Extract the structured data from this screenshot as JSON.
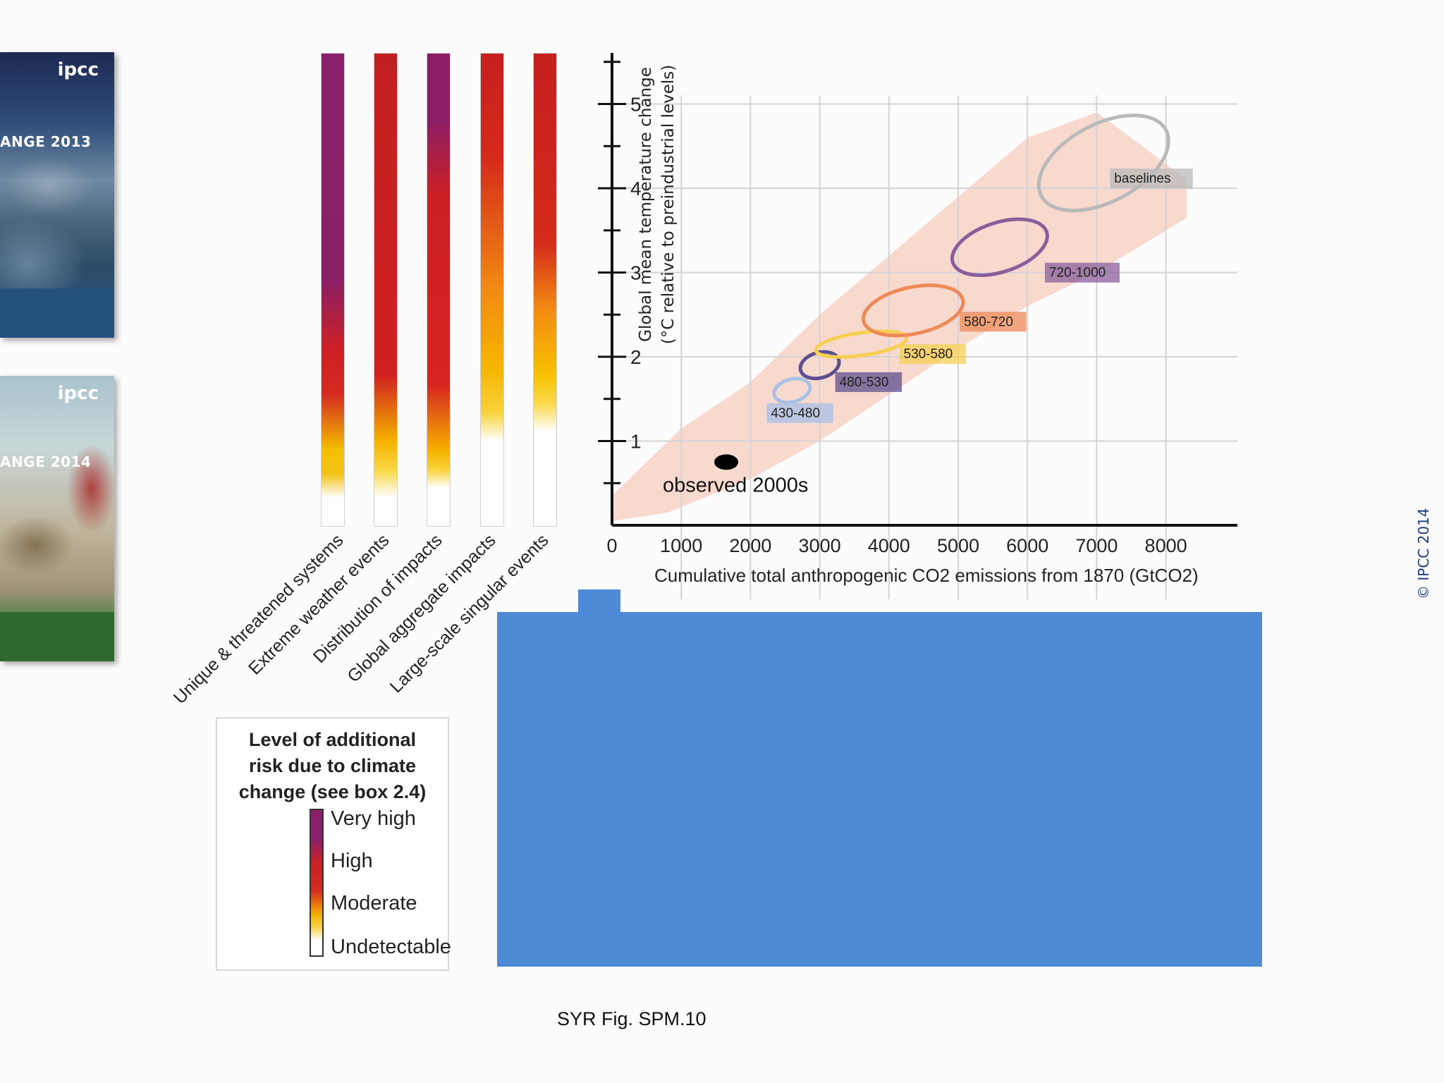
{
  "covers": [
    {
      "logo": "ipcc",
      "title": "ANGE 2013"
    },
    {
      "logo": "ipcc",
      "title": "ANGE 2014"
    }
  ],
  "risk_categories": [
    "Unique & threatened systems",
    "Extreme weather events",
    "Distribution of impacts",
    "Global aggregate impacts",
    "Large-scale singular events"
  ],
  "legend": {
    "title": "Level of additional risk due to climate change (see box 2.4)",
    "levels": [
      "Very high",
      "High",
      "Moderate",
      "Undetectable"
    ]
  },
  "chart_data": {
    "type": "scatter",
    "xlabel": "Cumulative total anthropogenic CO2 emissions from 1870 (GtCO2)",
    "ylabel_line1": "Global mean temperature change",
    "ylabel_line2": "(°C relative to preindustrial levels)",
    "x_ticks": [
      0,
      1000,
      2000,
      3000,
      4000,
      5000,
      6000,
      7000,
      8000
    ],
    "y_ticks": [
      1,
      2,
      3,
      4,
      5
    ],
    "xlim": [
      0,
      9000
    ],
    "ylim": [
      0,
      5.5
    ],
    "grid": true,
    "observed": {
      "label": "observed 2000s",
      "x": 1650,
      "y": 0.75
    },
    "scenarios": [
      {
        "name": "430-480",
        "x": 2600,
        "y": 1.6,
        "color": "#a9bfe6"
      },
      {
        "name": "480-530",
        "x": 3000,
        "y": 1.9,
        "color": "#5d4f8e"
      },
      {
        "name": "530-580",
        "x": 3600,
        "y": 2.15,
        "color": "#f7cf52"
      },
      {
        "name": "580-720",
        "x": 4350,
        "y": 2.55,
        "color": "#ee8a56"
      },
      {
        "name": "720-1000",
        "x": 5600,
        "y": 3.3,
        "color": "#8a5e9c"
      },
      {
        "name": "baselines",
        "x": 7100,
        "y": 4.3,
        "color": "#b9b9b9"
      }
    ]
  },
  "caption": "SYR Fig. SPM.10",
  "copyright": "© IPCC 2014"
}
